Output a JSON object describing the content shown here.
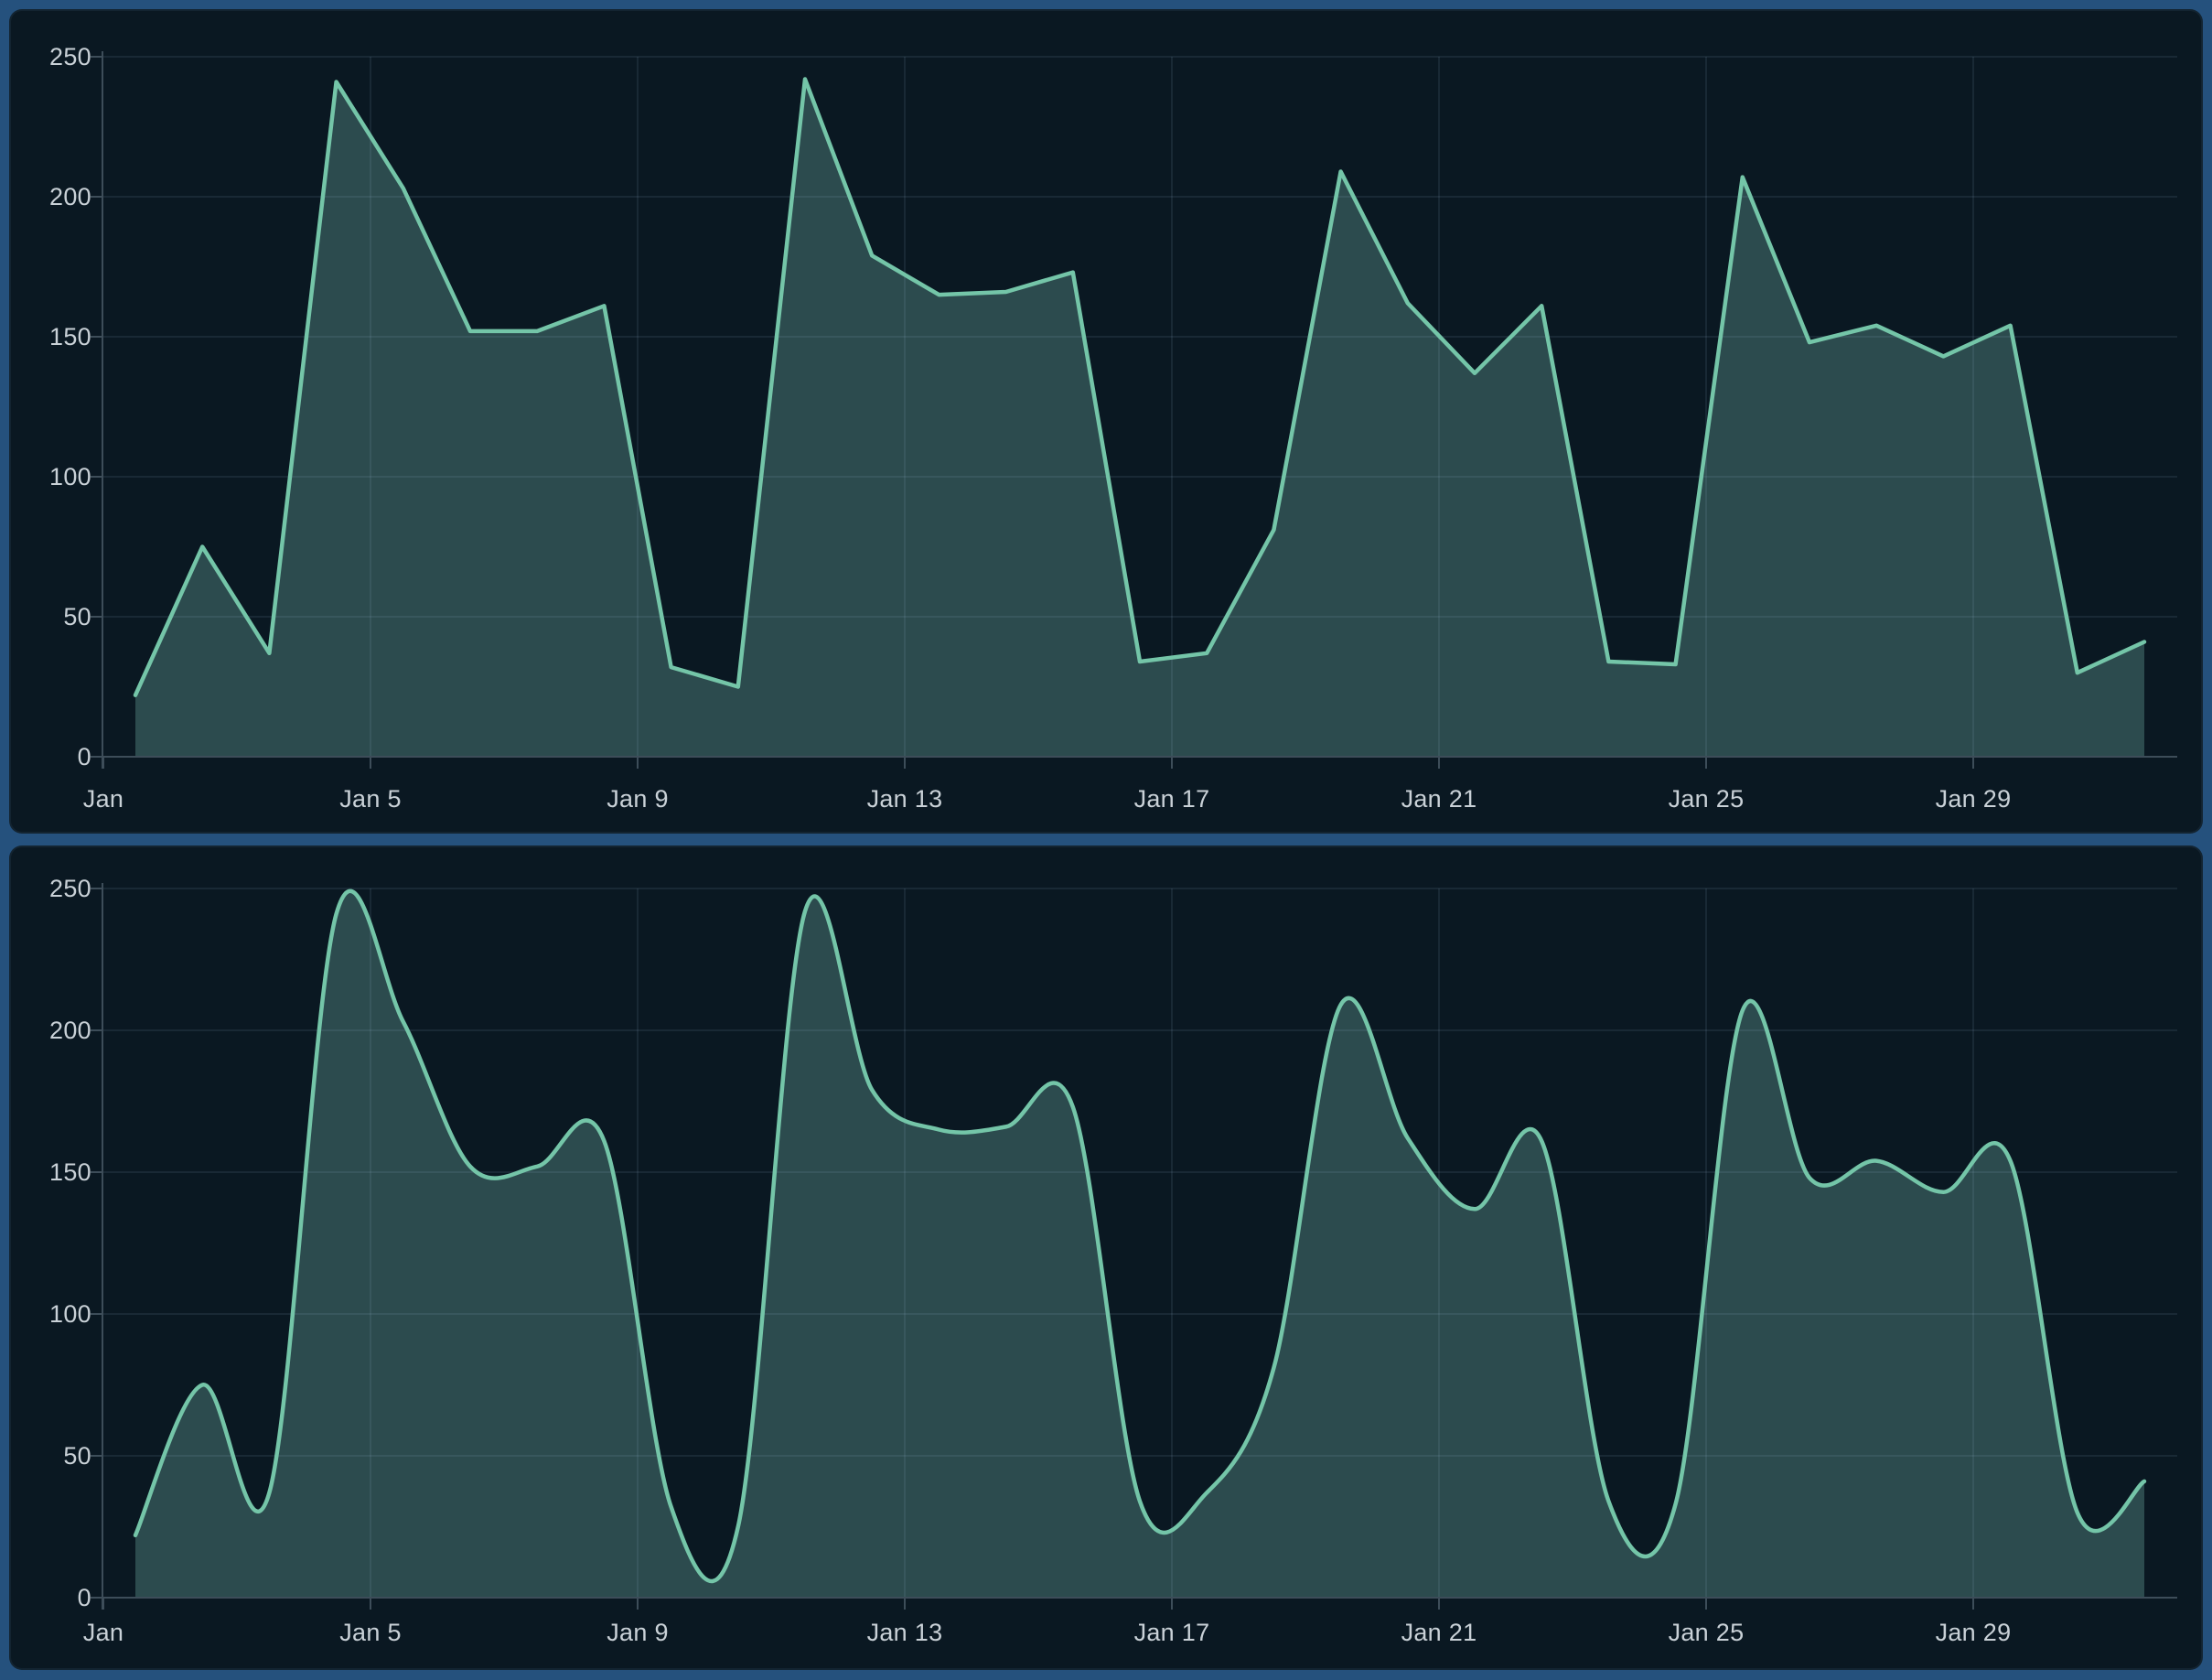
{
  "page": {
    "background_color": "#25517d",
    "panel_background_color": "#0a1822"
  },
  "colors": {
    "frame_blue": "#25517d",
    "panel_bg": "#0a1822",
    "line": "#74c5a8",
    "fill": "#2c4b4e",
    "gridline": "rgba(164,196,222,0.10)",
    "axis": "#3d4d59",
    "tick_label": "#c9d1d7"
  },
  "chart_data": [
    {
      "type": "area",
      "variant": "linear",
      "title": "",
      "xlabel": "",
      "ylabel": "",
      "ylim": [
        0,
        250
      ],
      "grid": true,
      "legend": "none",
      "x_tick_labels": [
        "Jan",
        "Jan 5",
        "Jan 9",
        "Jan 13",
        "Jan 17",
        "Jan 21",
        "Jan 25",
        "Jan 29"
      ],
      "y_tick_labels": [
        "250",
        "200",
        "150",
        "100",
        "50",
        "0"
      ],
      "dates": [
        "Jan 1",
        "Jan 2",
        "Jan 3",
        "Jan 4",
        "Jan 5",
        "Jan 6",
        "Jan 7",
        "Jan 8",
        "Jan 9",
        "Jan 10",
        "Jan 11",
        "Jan 12",
        "Jan 13",
        "Jan 14",
        "Jan 15",
        "Jan 16",
        "Jan 17",
        "Jan 18",
        "Jan 19",
        "Jan 20",
        "Jan 21",
        "Jan 22",
        "Jan 23",
        "Jan 24",
        "Jan 25",
        "Jan 26",
        "Jan 27",
        "Jan 28",
        "Jan 29",
        "Jan 30",
        "Jan 31"
      ],
      "values": [
        22,
        75,
        37,
        241,
        203,
        152,
        152,
        161,
        32,
        25,
        242,
        179,
        165,
        166,
        173,
        34,
        37,
        81,
        209,
        162,
        137,
        161,
        34,
        33,
        207,
        148,
        154,
        143,
        154,
        30,
        41
      ],
      "line_color": "#74c5a8",
      "fill_color": "#2c4b4e"
    },
    {
      "type": "area",
      "variant": "smooth",
      "title": "",
      "xlabel": "",
      "ylabel": "",
      "ylim": [
        0,
        250
      ],
      "grid": true,
      "legend": "none",
      "x_tick_labels": [
        "Jan",
        "Jan 5",
        "Jan 9",
        "Jan 13",
        "Jan 17",
        "Jan 21",
        "Jan 25",
        "Jan 29"
      ],
      "y_tick_labels": [
        "250",
        "200",
        "150",
        "100",
        "50",
        "0"
      ],
      "dates": [
        "Jan 1",
        "Jan 2",
        "Jan 3",
        "Jan 4",
        "Jan 5",
        "Jan 6",
        "Jan 7",
        "Jan 8",
        "Jan 9",
        "Jan 10",
        "Jan 11",
        "Jan 12",
        "Jan 13",
        "Jan 14",
        "Jan 15",
        "Jan 16",
        "Jan 17",
        "Jan 18",
        "Jan 19",
        "Jan 20",
        "Jan 21",
        "Jan 22",
        "Jan 23",
        "Jan 24",
        "Jan 25",
        "Jan 26",
        "Jan 27",
        "Jan 28",
        "Jan 29",
        "Jan 30",
        "Jan 31"
      ],
      "values": [
        22,
        75,
        37,
        241,
        203,
        152,
        152,
        161,
        32,
        25,
        242,
        179,
        165,
        166,
        173,
        34,
        37,
        81,
        209,
        162,
        137,
        161,
        34,
        33,
        207,
        148,
        154,
        143,
        154,
        30,
        41
      ],
      "line_color": "#74c5a8",
      "fill_color": "#2c4b4e"
    }
  ]
}
